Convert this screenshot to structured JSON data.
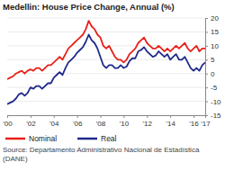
{
  "chart_data": {
    "type": "line",
    "title": "Medellin: House Price Change, Annual (%)",
    "source": "Source: Departamento Administrativo Nacional de Estadística (DANE)",
    "categories": [
      "'00",
      null,
      null,
      null,
      null,
      null,
      null,
      null,
      "'02",
      null,
      null,
      null,
      null,
      null,
      null,
      null,
      "'04",
      null,
      null,
      null,
      null,
      null,
      null,
      null,
      "'06",
      null,
      null,
      null,
      null,
      null,
      null,
      null,
      "'08",
      null,
      null,
      null,
      null,
      null,
      null,
      null,
      "'10",
      null,
      null,
      null,
      null,
      null,
      null,
      null,
      "'12",
      null,
      null,
      null,
      null,
      null,
      null,
      null,
      "'14",
      null,
      null,
      null,
      null,
      null,
      null,
      null,
      "'16",
      null,
      null,
      null,
      "'17"
    ],
    "series": [
      {
        "name": "Nominal",
        "color": "#e8211a",
        "values": [
          -2,
          -1.5,
          -1,
          0,
          0.5,
          1,
          0,
          1,
          1.5,
          1,
          2,
          2,
          1,
          2,
          3,
          3,
          4,
          5,
          6,
          5,
          7,
          9,
          10,
          11,
          12,
          13,
          14,
          16,
          19,
          17,
          16,
          14,
          13,
          10,
          9,
          10,
          8,
          6,
          5,
          5,
          4,
          5,
          7,
          8,
          9,
          11,
          12,
          13,
          11,
          10,
          9,
          9,
          10,
          9,
          8,
          9,
          8,
          9,
          10,
          9,
          10,
          11,
          9,
          8,
          9,
          10,
          8,
          9,
          9
        ]
      },
      {
        "name": "Real",
        "color": "#1f2a8a",
        "values": [
          -11,
          -10.5,
          -10,
          -9,
          -7.5,
          -7,
          -8,
          -7,
          -5,
          -5.5,
          -4.5,
          -4.5,
          -5.5,
          -4.5,
          -3.5,
          -3.5,
          -1.5,
          -0.5,
          0.5,
          -0.5,
          2,
          4,
          5,
          6,
          7.5,
          8.5,
          9.5,
          11.5,
          14,
          12,
          11,
          9,
          6,
          3,
          2,
          3,
          3,
          2,
          2,
          3,
          2,
          2.5,
          4.5,
          5.5,
          5.5,
          8,
          8.5,
          9.5,
          8,
          7,
          6,
          6.5,
          8,
          7,
          6,
          7,
          5,
          6,
          7,
          5,
          5,
          6,
          4,
          2,
          1,
          2,
          1,
          3,
          4
        ]
      }
    ],
    "ylim": [
      -15,
      20
    ],
    "yticks": [
      -15,
      -10,
      -5,
      0,
      5,
      10,
      15,
      20
    ],
    "grid": true,
    "legend": "bottom"
  }
}
